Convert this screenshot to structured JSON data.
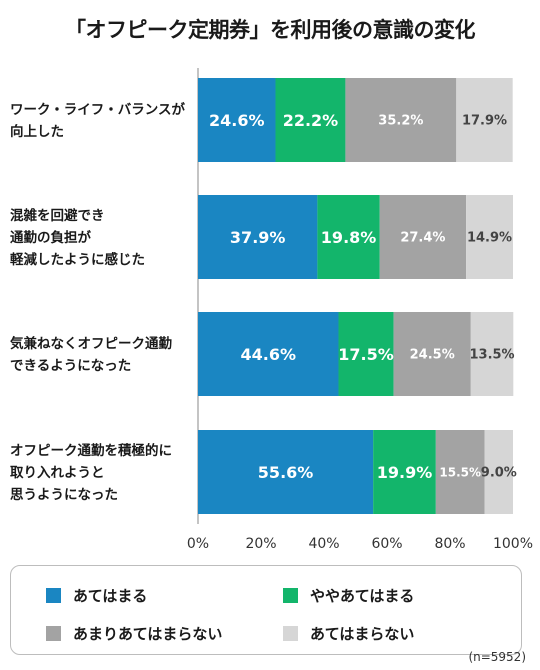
{
  "title": "「オフピーク定期券」を利用後の意識の変化",
  "legend": [
    {
      "label": "あてはまる",
      "color": "#1a86c2"
    },
    {
      "label": "ややあてはまる",
      "color": "#13b56b"
    },
    {
      "label": "あまりあてはまらない",
      "color": "#a3a3a3"
    },
    {
      "label": "あてはまらない",
      "color": "#d6d6d6"
    }
  ],
  "note": "(n=5952)",
  "chart_data": {
    "type": "bar",
    "orientation": "horizontal",
    "stacked": true,
    "categories": [
      [
        "ワーク・ライフ・バランスが",
        "向上した"
      ],
      [
        "混雑を回避でき",
        "通勤の負担が",
        "軽減したように感じた"
      ],
      [
        "気兼ねなくオフピーク通勤",
        "できるようになった"
      ],
      [
        "オフピーク通勤を積極的に",
        "取り入れようと",
        "思うようになった"
      ]
    ],
    "series": [
      {
        "name": "あてはまる",
        "values": [
          24.6,
          37.9,
          44.6,
          55.6
        ]
      },
      {
        "name": "ややあてはまる",
        "values": [
          22.2,
          19.8,
          17.5,
          19.9
        ]
      },
      {
        "name": "あまりあてはまらない",
        "values": [
          35.2,
          27.4,
          24.5,
          15.5
        ]
      },
      {
        "name": "あてはまらない",
        "values": [
          17.9,
          14.9,
          13.5,
          9.0
        ]
      }
    ],
    "value_labels": [
      [
        "24.6%",
        "22.2%",
        "35.2%",
        "17.9%"
      ],
      [
        "37.9%",
        "19.8%",
        "27.4%",
        "14.9%"
      ],
      [
        "44.6%",
        "17.5%",
        "24.5%",
        "13.5%"
      ],
      [
        "55.6%",
        "19.9%",
        "15.5%",
        "9.0%"
      ]
    ],
    "xlim": [
      0,
      100
    ],
    "xticks": [
      0,
      20,
      40,
      60,
      80,
      100
    ],
    "xtick_labels": [
      "0%",
      "20%",
      "40%",
      "60%",
      "80%",
      "100%"
    ],
    "grid": false
  }
}
